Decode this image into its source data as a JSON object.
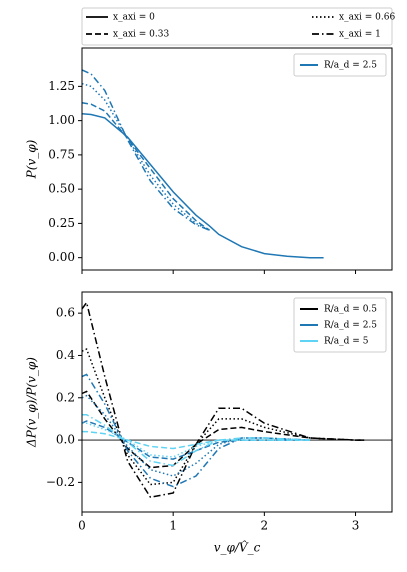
{
  "chart_data": [
    {
      "type": "line",
      "y_label": "P(v_φ)",
      "style_legend": [
        {
          "label": "x_axi = 0",
          "dash": "solid"
        },
        {
          "label": "x_axi = 0.66",
          "dash": "dotted"
        },
        {
          "label": "x_axi = 0.33",
          "dash": "dashed"
        },
        {
          "label": "x_axi = 1",
          "dash": "dashdot"
        }
      ],
      "legend": [
        {
          "label": "R/a_d = 2.5",
          "color": "#1f77b4"
        }
      ],
      "legend_corner": "upper right",
      "x": [
        0,
        0.1,
        0.25,
        0.5,
        0.75,
        1.0,
        1.25,
        1.4,
        1.5,
        1.75,
        2.0,
        2.25,
        2.5,
        2.65
      ],
      "series": [
        {
          "color": "#1f77b4",
          "dash": "solid",
          "values": [
            1.05,
            1.045,
            1.02,
            0.88,
            0.68,
            0.48,
            0.31,
            0.23,
            0.17,
            0.08,
            0.03,
            0.01,
            0.0,
            0.0
          ]
        },
        {
          "color": "#1f77b4",
          "dash": "dashed",
          "values": [
            1.13,
            1.12,
            1.07,
            0.87,
            0.65,
            0.43,
            0.27,
            0.2,
            null,
            null,
            null,
            null,
            null,
            null
          ]
        },
        {
          "color": "#1f77b4",
          "dash": "dotted",
          "values": [
            1.27,
            1.25,
            1.15,
            0.87,
            0.6,
            0.39,
            0.25,
            0.2,
            null,
            null,
            null,
            null,
            null,
            null
          ]
        },
        {
          "color": "#1f77b4",
          "dash": "dashdot",
          "values": [
            1.37,
            1.34,
            1.22,
            0.86,
            0.56,
            0.36,
            0.24,
            0.2,
            null,
            null,
            null,
            null,
            null,
            null
          ]
        }
      ],
      "xlim": [
        0,
        3.4
      ],
      "xticks": [
        0,
        1,
        2,
        3
      ],
      "show_xtick_labels": false,
      "ylim": [
        -0.09,
        1.53
      ],
      "yticks": [
        {
          "value": 0,
          "label": "0.00"
        },
        {
          "value": 0.25,
          "label": "0.25"
        },
        {
          "value": 0.5,
          "label": "0.50"
        },
        {
          "value": 0.75,
          "label": "0.75"
        },
        {
          "value": 1,
          "label": "1.00"
        },
        {
          "value": 1.25,
          "label": "1.25"
        }
      ]
    },
    {
      "type": "line",
      "y_label": "ΔP(v_φ)/P(v_φ)",
      "x_label": "v_φ/V̂_c",
      "legend": [
        {
          "label": "R/a_d = 0.5",
          "color": "#000000"
        },
        {
          "label": "R/a_d = 2.5",
          "color": "#1f77b4"
        },
        {
          "label": "R/a_d = 5",
          "color": "#5fd3f3"
        }
      ],
      "legend_corner": "upper right",
      "hline": 0,
      "x": [
        0,
        0.05,
        0.25,
        0.5,
        0.75,
        1.0,
        1.25,
        1.5,
        1.75,
        2.0,
        2.5,
        3.0,
        3.1
      ],
      "series": [
        {
          "color": "#000000",
          "dash": "dashed",
          "values": [
            0.22,
            0.23,
            0.1,
            -0.04,
            -0.13,
            -0.12,
            -0.02,
            0.05,
            0.06,
            0.04,
            0.01,
            0,
            0
          ]
        },
        {
          "color": "#000000",
          "dash": "dotted",
          "values": [
            0.42,
            0.43,
            0.2,
            -0.07,
            -0.21,
            -0.2,
            -0.02,
            0.1,
            0.1,
            0.06,
            0.01,
            0,
            0
          ]
        },
        {
          "color": "#000000",
          "dash": "dashdot",
          "values": [
            0.62,
            0.65,
            0.3,
            -0.1,
            -0.27,
            -0.25,
            -0.02,
            0.15,
            0.15,
            0.08,
            0.01,
            0,
            0
          ]
        },
        {
          "color": "#1f77b4",
          "dash": "dashed",
          "values": [
            0.08,
            0.09,
            0.06,
            -0.01,
            -0.08,
            -0.09,
            -0.05,
            -0.01,
            0,
            0,
            0,
            null,
            null
          ]
        },
        {
          "color": "#1f77b4",
          "dash": "dotted",
          "values": [
            0.2,
            0.21,
            0.12,
            -0.03,
            -0.14,
            -0.17,
            -0.11,
            -0.02,
            0.01,
            0.01,
            0,
            null,
            null
          ]
        },
        {
          "color": "#1f77b4",
          "dash": "dashdot",
          "values": [
            0.3,
            0.31,
            0.17,
            -0.05,
            -0.18,
            -0.22,
            -0.17,
            -0.04,
            0.01,
            0.01,
            0,
            null,
            null
          ]
        },
        {
          "color": "#5fd3f3",
          "dash": "dashed",
          "values": [
            0.04,
            0.04,
            0.03,
            0,
            -0.03,
            -0.04,
            -0.02,
            0,
            0,
            0,
            0,
            null,
            null
          ]
        },
        {
          "color": "#5fd3f3",
          "dash": "dotted",
          "values": [
            0.08,
            0.08,
            0.05,
            0,
            -0.07,
            -0.08,
            -0.03,
            0,
            0,
            0,
            0,
            null,
            null
          ]
        },
        {
          "color": "#5fd3f3",
          "dash": "dashdot",
          "values": [
            0.12,
            0.12,
            0.07,
            -0.01,
            -0.1,
            -0.12,
            -0.05,
            0,
            0.01,
            0.01,
            0,
            null,
            null
          ]
        }
      ],
      "xlim": [
        0,
        3.4
      ],
      "xticks": [
        0,
        1,
        2,
        3
      ],
      "show_xtick_labels": true,
      "ylim": [
        -0.34,
        0.7
      ],
      "yticks": [
        {
          "value": -0.2,
          "label": "−0.2"
        },
        {
          "value": 0,
          "label": "0.0"
        },
        {
          "value": 0.2,
          "label": "0.2"
        },
        {
          "value": 0.4,
          "label": "0.4"
        },
        {
          "value": 0.6,
          "label": "0.6"
        }
      ]
    }
  ]
}
